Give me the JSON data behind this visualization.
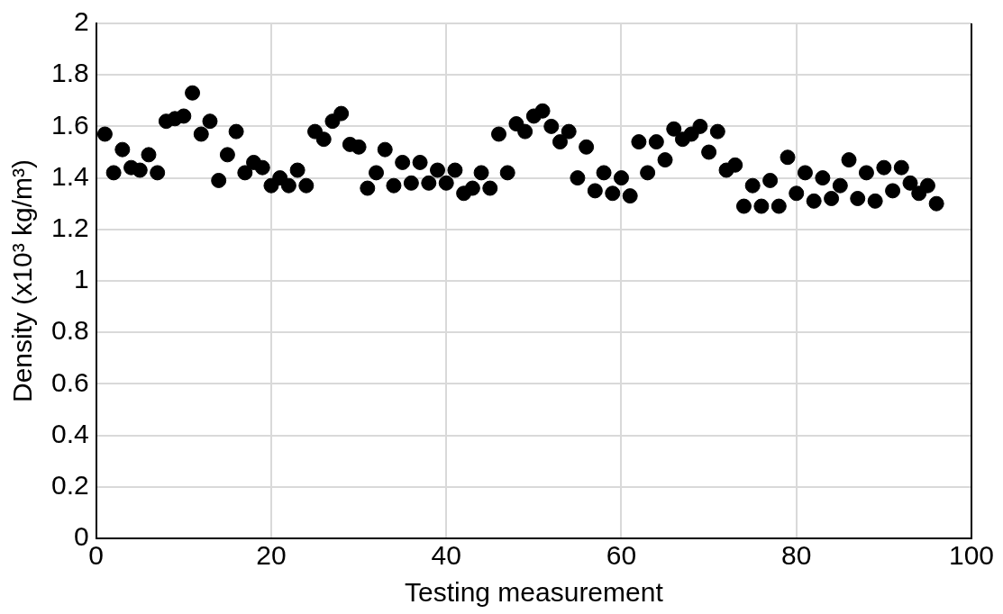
{
  "chart_data": {
    "type": "scatter",
    "xlabel": "Testing measurement",
    "ylabel": "Density (x10³ kg/m³)",
    "x": [
      1,
      2,
      3,
      4,
      5,
      6,
      7,
      8,
      9,
      10,
      11,
      12,
      13,
      14,
      15,
      16,
      17,
      18,
      19,
      20,
      21,
      22,
      23,
      24,
      25,
      26,
      27,
      28,
      29,
      30,
      31,
      32,
      33,
      34,
      35,
      36,
      37,
      38,
      39,
      40,
      41,
      42,
      43,
      44,
      45,
      46,
      47,
      48,
      49,
      50,
      51,
      52,
      53,
      54,
      55,
      56,
      57,
      58,
      59,
      60,
      61,
      62,
      63,
      64,
      65,
      66,
      67,
      68,
      69,
      70,
      71,
      72,
      73,
      74,
      75,
      76,
      77,
      78,
      79,
      80,
      81,
      82,
      83,
      84,
      85,
      86,
      87,
      88,
      89,
      90,
      91,
      92,
      93,
      94,
      95,
      96
    ],
    "values": [
      1.57,
      1.42,
      1.51,
      1.44,
      1.43,
      1.49,
      1.42,
      1.62,
      1.63,
      1.64,
      1.73,
      1.57,
      1.62,
      1.39,
      1.49,
      1.58,
      1.42,
      1.46,
      1.44,
      1.37,
      1.4,
      1.37,
      1.43,
      1.37,
      1.58,
      1.55,
      1.62,
      1.65,
      1.53,
      1.52,
      1.36,
      1.42,
      1.51,
      1.37,
      1.46,
      1.38,
      1.46,
      1.38,
      1.43,
      1.38,
      1.43,
      1.34,
      1.36,
      1.42,
      1.36,
      1.57,
      1.42,
      1.61,
      1.58,
      1.64,
      1.66,
      1.6,
      1.54,
      1.58,
      1.4,
      1.52,
      1.35,
      1.42,
      1.34,
      1.4,
      1.33,
      1.54,
      1.42,
      1.54,
      1.47,
      1.59,
      1.55,
      1.57,
      1.6,
      1.5,
      1.58,
      1.43,
      1.45,
      1.29,
      1.37,
      1.29,
      1.39,
      1.29,
      1.48,
      1.34,
      1.42,
      1.31,
      1.4,
      1.32,
      1.37,
      1.47,
      1.32,
      1.42,
      1.31,
      1.44,
      1.35,
      1.44,
      1.38,
      1.34,
      1.37,
      1.3
    ],
    "color": "#000000",
    "marker": "circle",
    "xlim": [
      0,
      100
    ],
    "xticks": [
      0,
      20,
      40,
      60,
      80,
      100
    ],
    "ylim": [
      0,
      2
    ],
    "yticks": [
      0,
      0.2,
      0.4,
      0.6,
      0.8,
      1,
      1.2,
      1.4,
      1.6,
      1.8,
      2
    ],
    "grid": true,
    "legend": false
  }
}
